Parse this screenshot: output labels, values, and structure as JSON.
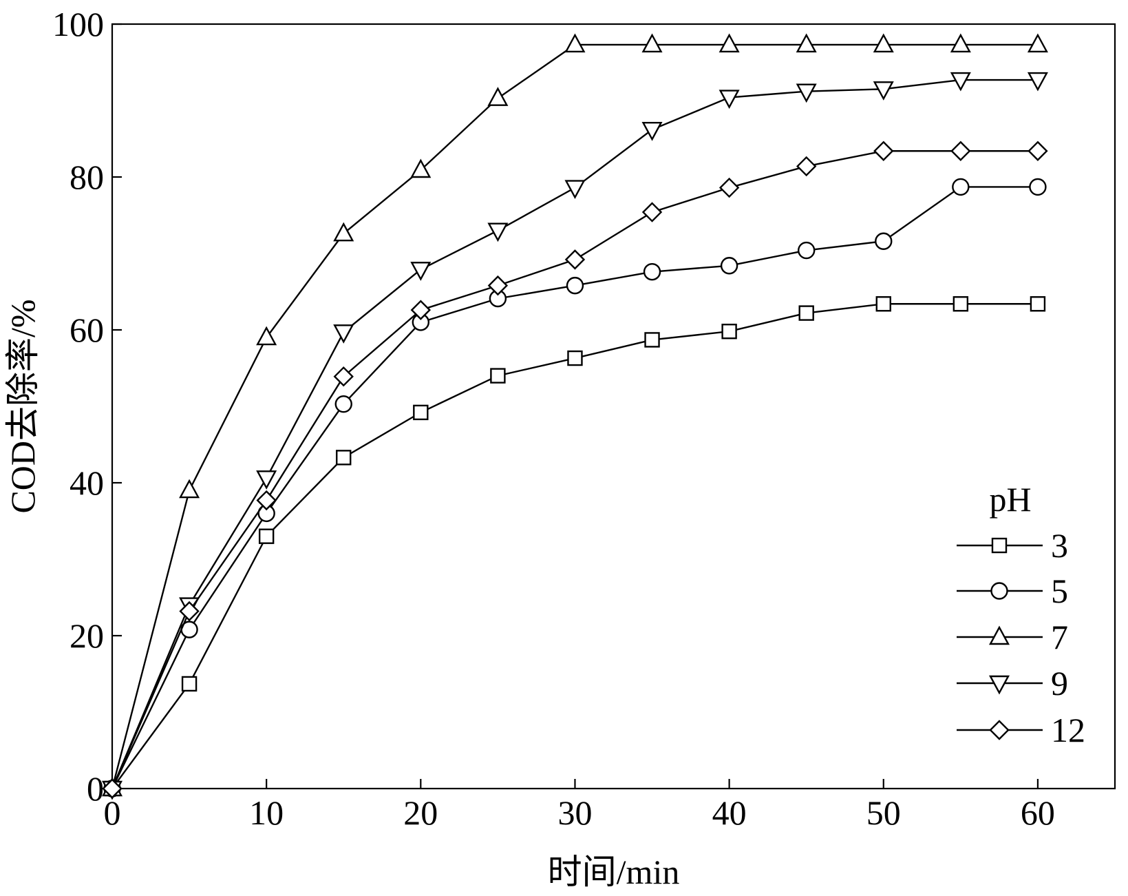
{
  "chart_data": {
    "type": "line",
    "title": "",
    "xlabel": "时间/min",
    "ylabel": "COD去除率/%",
    "xlim": [
      0,
      65
    ],
    "ylim": [
      0,
      100
    ],
    "x_ticks": [
      0,
      10,
      20,
      30,
      40,
      50,
      60
    ],
    "y_ticks": [
      0,
      20,
      40,
      60,
      80,
      100
    ],
    "grid": false,
    "legend": {
      "title": "pH",
      "position": "bottom-right"
    },
    "x": [
      0,
      5,
      10,
      15,
      20,
      25,
      30,
      35,
      40,
      45,
      50,
      55,
      60
    ],
    "series": [
      {
        "name": "3",
        "marker": "square",
        "values": [
          0,
          13.7,
          33,
          43.3,
          49.2,
          54,
          56.3,
          58.7,
          59.8,
          62.2,
          63.4,
          63.4,
          63.4
        ]
      },
      {
        "name": "5",
        "marker": "circle",
        "values": [
          0,
          20.8,
          36,
          50.3,
          61,
          64.1,
          65.8,
          67.6,
          68.4,
          70.4,
          71.6,
          78.7,
          78.7
        ]
      },
      {
        "name": "7",
        "marker": "triangle-up",
        "values": [
          0,
          39,
          59,
          72.6,
          80.9,
          90.3,
          97.3,
          97.3,
          97.3,
          97.3,
          97.3,
          97.3,
          97.3
        ]
      },
      {
        "name": "9",
        "marker": "triangle-down",
        "values": [
          0,
          24,
          40.6,
          59.7,
          67.9,
          73,
          78.6,
          86.2,
          90.4,
          91.2,
          91.5,
          92.7,
          92.7
        ]
      },
      {
        "name": "12",
        "marker": "diamond",
        "values": [
          0,
          23.2,
          37.7,
          53.9,
          62.6,
          65.8,
          69.2,
          75.4,
          78.6,
          81.4,
          83.4,
          83.4,
          83.4
        ]
      }
    ]
  }
}
